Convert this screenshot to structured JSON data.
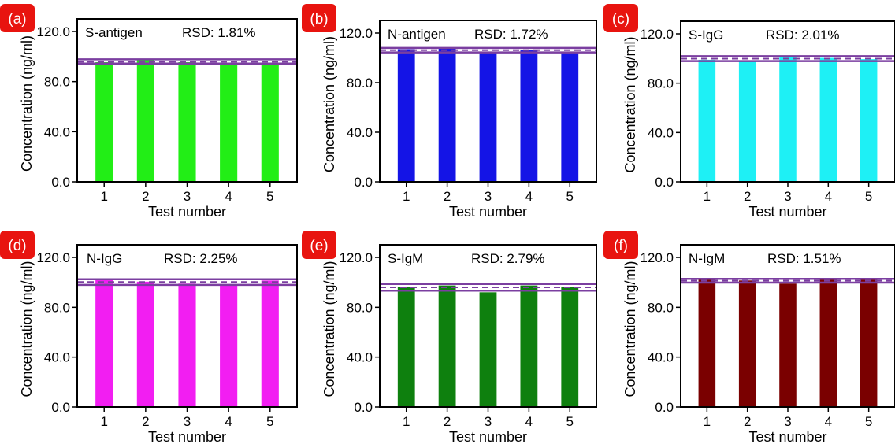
{
  "figure": {
    "background": "#ffffff",
    "tag_color": "#e8140f",
    "band_color": "#7b3fa0"
  },
  "chart_data": [
    {
      "type": "bar",
      "panel_label": "(a)",
      "series_label": "S-antigen",
      "rsd": "RSD: 1.81%",
      "categories": [
        "1",
        "2",
        "3",
        "4",
        "5"
      ],
      "values": [
        95.5,
        98.0,
        95.5,
        95.0,
        95.0
      ],
      "color": "#22ee16",
      "mean": 95.9,
      "band": [
        94.4,
        97.8
      ],
      "ylim": [
        0,
        120
      ],
      "yticks": [
        "0.0",
        "40.0",
        "80.0",
        "120.0"
      ],
      "xlabel": "Test number",
      "ylabel": "Concentration (ng/ml)"
    },
    {
      "type": "bar",
      "panel_label": "(b)",
      "series_label": "N-antigen",
      "rsd": "RSD: 1.72%",
      "categories": [
        "1",
        "2",
        "3",
        "4",
        "5"
      ],
      "values": [
        107.0,
        108.0,
        105.0,
        106.0,
        105.0
      ],
      "color": "#1414e6",
      "mean": 106.2,
      "band": [
        104.4,
        108.0
      ],
      "ylim": [
        0,
        120
      ],
      "yticks": [
        "0.0",
        "40.0",
        "80.0",
        "120.0"
      ],
      "xlabel": "Test number",
      "ylabel": "Concentration (ng/ml)"
    },
    {
      "type": "bar",
      "panel_label": "(c)",
      "series_label": "S-IgG",
      "rsd": "RSD: 2.01%",
      "categories": [
        "1",
        "2",
        "3",
        "4",
        "5"
      ],
      "values": [
        99.0,
        98.5,
        102.0,
        100.5,
        99.5
      ],
      "color": "#1ef0f5",
      "mean": 99.9,
      "band": [
        97.9,
        101.9
      ],
      "ylim": [
        0,
        120
      ],
      "yticks": [
        "0.0",
        "40.0",
        "80.0",
        "120.0"
      ],
      "xlabel": "Test number",
      "ylabel": "Concentration (ng/ml)"
    },
    {
      "type": "bar",
      "panel_label": "(d)",
      "series_label": "N-IgG",
      "rsd": "RSD: 2.25%",
      "categories": [
        "1",
        "2",
        "3",
        "4",
        "5"
      ],
      "values": [
        102.0,
        100.5,
        99.0,
        98.5,
        101.5
      ],
      "color": "#f21ef2",
      "mean": 100.3,
      "band": [
        98.0,
        102.5
      ],
      "ylim": [
        0,
        120
      ],
      "yticks": [
        "0.0",
        "40.0",
        "80.0",
        "120.0"
      ],
      "xlabel": "Test number",
      "ylabel": "Concentration (ng/ml)"
    },
    {
      "type": "bar",
      "panel_label": "(e)",
      "series_label": "S-IgM",
      "rsd": "RSD: 2.79%",
      "categories": [
        "1",
        "2",
        "3",
        "4",
        "5"
      ],
      "values": [
        96.5,
        97.5,
        92.0,
        97.5,
        96.5
      ],
      "color": "#0e800e",
      "mean": 96.0,
      "band": [
        93.3,
        98.7
      ],
      "ylim": [
        0,
        120
      ],
      "yticks": [
        "0.0",
        "40.0",
        "80.0",
        "120.0"
      ],
      "xlabel": "Test number",
      "ylabel": "Concentration (ng/ml)"
    },
    {
      "type": "bar",
      "panel_label": "(f)",
      "series_label": "N-IgM",
      "rsd": "RSD: 1.51%",
      "categories": [
        "1",
        "2",
        "3",
        "4",
        "5"
      ],
      "values": [
        102.0,
        101.5,
        99.0,
        102.0,
        102.0
      ],
      "color": "#7a0000",
      "mean": 101.3,
      "band": [
        99.8,
        102.8
      ],
      "ylim": [
        0,
        120
      ],
      "yticks": [
        "0.0",
        "40.0",
        "80.0",
        "120.0"
      ],
      "xlabel": "Test number",
      "ylabel": "Concentration (ng/ml)"
    }
  ]
}
